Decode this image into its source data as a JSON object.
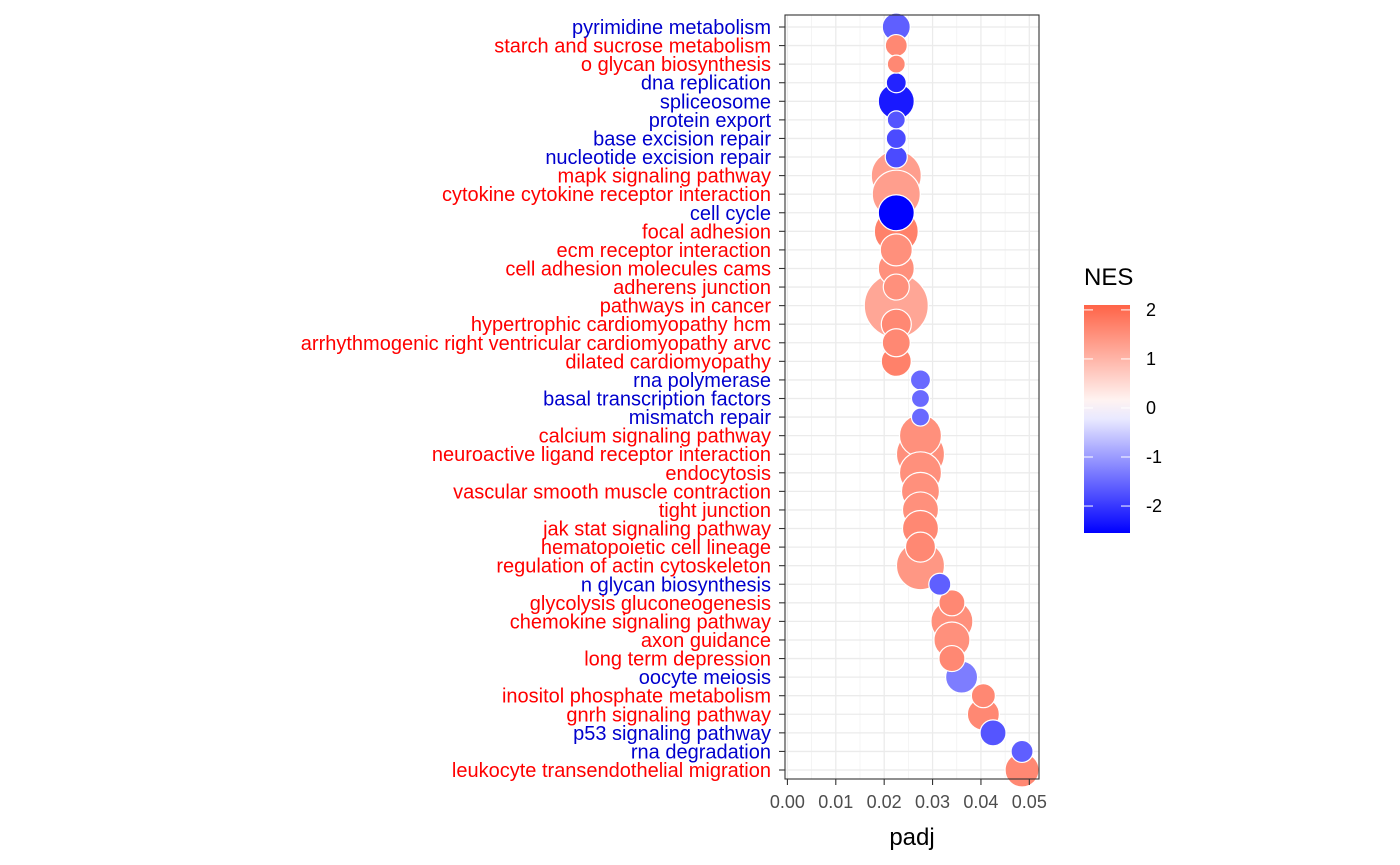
{
  "chart_data": {
    "type": "scatter",
    "subtype": "bubble",
    "xlabel": "padj",
    "ylabel": "",
    "xlim": [
      -0.0005,
      0.052
    ],
    "xticks": [
      0.0,
      0.01,
      0.02,
      0.03,
      0.04,
      0.05
    ],
    "xtick_labels": [
      "0.00",
      "0.01",
      "0.02",
      "0.03",
      "0.04",
      "0.05"
    ],
    "grid": true,
    "theme": "bw",
    "legend": {
      "title": "NES",
      "position": "right",
      "ticks": [
        2,
        1,
        0,
        -1,
        -2
      ],
      "tick_labels": [
        "2",
        "1",
        "0",
        "-1",
        "-2"
      ],
      "range": [
        -2.55,
        2.1
      ],
      "colors": {
        "low": "#0000ff",
        "mid": "#ffffff",
        "high": "#ff6347"
      }
    },
    "label_colors": {
      "positive": "#ff0000",
      "negative": "#0000cd"
    },
    "points": [
      {
        "pathway": "pyrimidine metabolism",
        "padj": 0.0225,
        "nes": -1.6,
        "size": 28
      },
      {
        "pathway": "starch and sucrose metabolism",
        "padj": 0.0225,
        "nes": 1.6,
        "size": 22
      },
      {
        "pathway": "o glycan biosynthesis",
        "padj": 0.0225,
        "nes": 1.6,
        "size": 18
      },
      {
        "pathway": "dna replication",
        "padj": 0.0225,
        "nes": -2.2,
        "size": 20
      },
      {
        "pathway": "spliceosome",
        "padj": 0.0225,
        "nes": -2.3,
        "size": 36
      },
      {
        "pathway": "protein export",
        "padj": 0.0225,
        "nes": -1.7,
        "size": 18
      },
      {
        "pathway": "base excision repair",
        "padj": 0.0225,
        "nes": -1.8,
        "size": 20
      },
      {
        "pathway": "nucleotide excision repair",
        "padj": 0.0225,
        "nes": -1.8,
        "size": 22
      },
      {
        "pathway": "mapk signaling pathway",
        "padj": 0.0225,
        "nes": 1.3,
        "size": 50
      },
      {
        "pathway": "cytokine cytokine receptor interaction",
        "padj": 0.0225,
        "nes": 1.3,
        "size": 48
      },
      {
        "pathway": "cell cycle",
        "padj": 0.0225,
        "nes": -2.55,
        "size": 36
      },
      {
        "pathway": "focal adhesion",
        "padj": 0.0225,
        "nes": 1.7,
        "size": 44
      },
      {
        "pathway": "ecm receptor interaction",
        "padj": 0.0225,
        "nes": 1.5,
        "size": 32
      },
      {
        "pathway": "cell adhesion molecules cams",
        "padj": 0.0225,
        "nes": 1.5,
        "size": 36
      },
      {
        "pathway": "adherens junction",
        "padj": 0.0225,
        "nes": 1.5,
        "size": 26
      },
      {
        "pathway": "pathways in cancer",
        "padj": 0.0225,
        "nes": 1.2,
        "size": 64
      },
      {
        "pathway": "hypertrophic cardiomyopathy hcm",
        "padj": 0.0225,
        "nes": 1.6,
        "size": 30
      },
      {
        "pathway": "arrhythmogenic right ventricular cardiomyopathy arvc",
        "padj": 0.0225,
        "nes": 1.6,
        "size": 28
      },
      {
        "pathway": "dilated cardiomyopathy",
        "padj": 0.0225,
        "nes": 1.7,
        "size": 30
      },
      {
        "pathway": "rna polymerase",
        "padj": 0.0275,
        "nes": -1.5,
        "size": 20
      },
      {
        "pathway": "basal transcription factors",
        "padj": 0.0275,
        "nes": -1.5,
        "size": 18
      },
      {
        "pathway": "mismatch repair",
        "padj": 0.0275,
        "nes": -1.5,
        "size": 18
      },
      {
        "pathway": "calcium signaling pathway",
        "padj": 0.0275,
        "nes": 1.5,
        "size": 42
      },
      {
        "pathway": "neuroactive ligand receptor interaction",
        "padj": 0.0275,
        "nes": 1.5,
        "size": 48
      },
      {
        "pathway": "endocytosis",
        "padj": 0.0275,
        "nes": 1.5,
        "size": 42
      },
      {
        "pathway": "vascular smooth muscle contraction",
        "padj": 0.0275,
        "nes": 1.5,
        "size": 38
      },
      {
        "pathway": "tight junction",
        "padj": 0.0275,
        "nes": 1.5,
        "size": 36
      },
      {
        "pathway": "jak stat signaling pathway",
        "padj": 0.0275,
        "nes": 1.6,
        "size": 36
      },
      {
        "pathway": "hematopoietic cell lineage",
        "padj": 0.0275,
        "nes": 1.6,
        "size": 30
      },
      {
        "pathway": "regulation of actin cytoskeleton",
        "padj": 0.0275,
        "nes": 1.4,
        "size": 48
      },
      {
        "pathway": "n glycan biosynthesis",
        "padj": 0.0315,
        "nes": -1.6,
        "size": 22
      },
      {
        "pathway": "glycolysis gluconeogenesis",
        "padj": 0.034,
        "nes": 1.6,
        "size": 26
      },
      {
        "pathway": "chemokine signaling pathway",
        "padj": 0.034,
        "nes": 1.5,
        "size": 42
      },
      {
        "pathway": "axon guidance",
        "padj": 0.034,
        "nes": 1.5,
        "size": 36
      },
      {
        "pathway": "long term depression",
        "padj": 0.034,
        "nes": 1.6,
        "size": 26
      },
      {
        "pathway": "oocyte meiosis",
        "padj": 0.036,
        "nes": -1.3,
        "size": 32
      },
      {
        "pathway": "inositol phosphate metabolism",
        "padj": 0.0405,
        "nes": 1.6,
        "size": 24
      },
      {
        "pathway": "gnrh signaling pathway",
        "padj": 0.0405,
        "nes": 1.6,
        "size": 32
      },
      {
        "pathway": "p53 signaling pathway",
        "padj": 0.0425,
        "nes": -1.7,
        "size": 26
      },
      {
        "pathway": "rna degradation",
        "padj": 0.0485,
        "nes": -1.6,
        "size": 22
      },
      {
        "pathway": "leukocyte transendothelial migration",
        "padj": 0.0485,
        "nes": 1.6,
        "size": 34
      }
    ]
  }
}
